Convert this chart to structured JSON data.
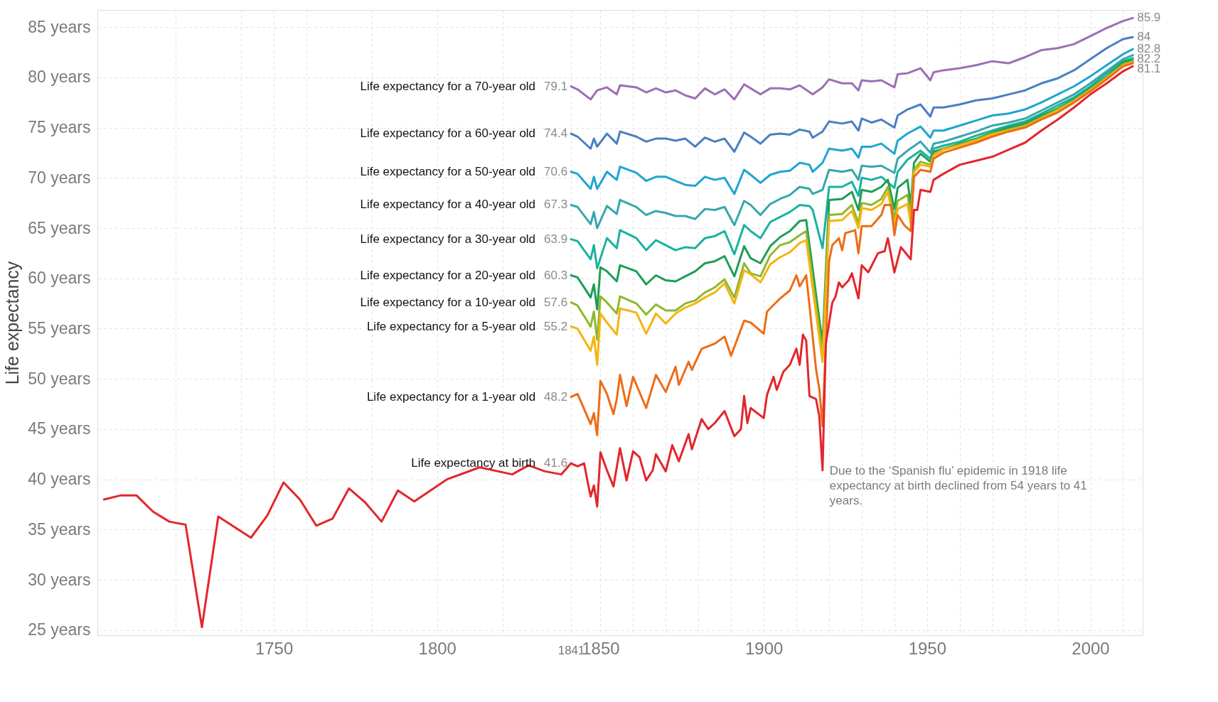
{
  "chart_data": {
    "type": "line",
    "ylabel": "Life expectancy",
    "xlim": [
      1696,
      2016
    ],
    "ylim": [
      24.5,
      86.7
    ],
    "xticks": [
      {
        "value": 1720,
        "label": null
      },
      {
        "value": 1740,
        "label": null
      },
      1750,
      {
        "value": 1760,
        "label": null
      },
      {
        "value": 1780,
        "label": null
      },
      1800,
      {
        "value": 1820,
        "label": null
      },
      1841,
      1850,
      {
        "value": 1860,
        "label": null
      },
      {
        "value": 1870,
        "label": null
      },
      {
        "value": 1880,
        "label": null
      },
      {
        "value": 1890,
        "label": null
      },
      1900,
      {
        "value": 1910,
        "label": null
      },
      {
        "value": 1920,
        "label": null
      },
      {
        "value": 1930,
        "label": null
      },
      {
        "value": 1940,
        "label": null
      },
      1950,
      {
        "value": 1960,
        "label": null
      },
      {
        "value": 1970,
        "label": null
      },
      {
        "value": 1980,
        "label": null
      },
      {
        "value": 1990,
        "label": null
      },
      2000,
      {
        "value": 2010,
        "label": null
      }
    ],
    "yticks": [
      {
        "value": 25,
        "label": "25 years"
      },
      {
        "value": 30,
        "label": "30 years"
      },
      {
        "value": 35,
        "label": "35 years"
      },
      {
        "value": 40,
        "label": "40 years"
      },
      {
        "value": 45,
        "label": "45 years"
      },
      {
        "value": 50,
        "label": "50 years"
      },
      {
        "value": 55,
        "label": "55 years"
      },
      {
        "value": 60,
        "label": "60 years"
      },
      {
        "value": 65,
        "label": "65 years"
      },
      {
        "value": 70,
        "label": "70 years"
      },
      {
        "value": 75,
        "label": "75 years"
      },
      {
        "value": 80,
        "label": "80 years"
      },
      {
        "value": 85,
        "label": "85 years"
      }
    ],
    "grid": true,
    "legend": false,
    "line_style": "solid",
    "annotations": [
      {
        "text": "Due to the ‘Spanish flu’ epidemic in 1918 life expectancy at birth declined from 54 years to 41 years.",
        "x": 1918,
        "y": 40.9
      }
    ],
    "series": [
      {
        "name": "Life expectancy for a 70-year old",
        "color": "#9c6fb6",
        "x": [
          1841,
          1843,
          1847,
          1849,
          1852,
          1855,
          1856,
          1861,
          1864,
          1867,
          1870,
          1873,
          1876,
          1879,
          1882,
          1885,
          1888,
          1891,
          1894,
          1896,
          1899,
          1902,
          1905,
          1908,
          1911,
          1915,
          1918,
          1920,
          1924,
          1927,
          1929,
          1930,
          1933,
          1936,
          1940,
          1941,
          1944,
          1948,
          1951,
          1952,
          1955,
          1960,
          1965,
          1970,
          1975,
          1980,
          1985,
          1990,
          1995,
          2000,
          2005,
          2010,
          2013
        ],
        "values": [
          79.1,
          78.8,
          77.8,
          78.7,
          79.0,
          78.3,
          79.2,
          79.0,
          78.5,
          78.9,
          78.5,
          78.7,
          78.2,
          77.9,
          78.9,
          78.3,
          78.8,
          77.8,
          79.3,
          78.9,
          78.3,
          78.9,
          78.9,
          78.8,
          79.2,
          78.3,
          79.0,
          79.8,
          79.4,
          79.4,
          78.7,
          79.7,
          79.6,
          79.7,
          79.0,
          80.3,
          80.4,
          80.9,
          79.7,
          80.5,
          80.7,
          80.9,
          81.2,
          81.6,
          81.4,
          82.0,
          82.7,
          82.9,
          83.3,
          84.1,
          84.9,
          85.6,
          85.9
        ],
        "value_labels": [
          "79.1",
          null,
          null,
          null,
          null,
          null,
          null,
          null,
          null,
          null,
          null,
          null,
          null,
          null,
          null,
          null,
          null,
          null,
          null,
          null,
          null,
          null,
          null,
          null,
          null,
          null,
          null,
          null,
          null,
          null,
          null,
          null,
          null,
          null,
          null,
          null,
          null,
          null,
          null,
          null,
          null,
          null,
          null,
          null,
          null,
          null,
          null,
          null,
          null,
          null,
          null,
          null,
          "85.9"
        ]
      },
      {
        "name": "Life expectancy for a 60-year old",
        "color": "#4a7fc1",
        "x": [
          1841,
          1843,
          1847,
          1848,
          1849,
          1852,
          1855,
          1856,
          1861,
          1864,
          1867,
          1870,
          1873,
          1876,
          1879,
          1882,
          1885,
          1888,
          1891,
          1894,
          1896,
          1899,
          1902,
          1905,
          1908,
          1911,
          1914,
          1915,
          1918,
          1920,
          1924,
          1927,
          1929,
          1930,
          1933,
          1936,
          1940,
          1941,
          1944,
          1948,
          1951,
          1952,
          1955,
          1960,
          1965,
          1970,
          1975,
          1980,
          1985,
          1990,
          1995,
          2000,
          2005,
          2010,
          2013
        ],
        "values": [
          74.4,
          74.1,
          72.9,
          73.9,
          73.1,
          74.4,
          73.4,
          74.6,
          74.1,
          73.6,
          73.9,
          73.9,
          73.7,
          73.9,
          73.1,
          74.0,
          73.6,
          73.9,
          72.6,
          74.5,
          74.1,
          73.4,
          74.3,
          74.4,
          74.3,
          74.8,
          74.6,
          74.0,
          74.6,
          75.6,
          75.4,
          75.6,
          74.7,
          75.9,
          75.5,
          75.8,
          75.0,
          76.2,
          76.8,
          77.3,
          76.1,
          77.0,
          77.0,
          77.3,
          77.7,
          77.9,
          78.3,
          78.7,
          79.4,
          79.9,
          80.7,
          81.8,
          82.9,
          83.8,
          84
        ],
        "value_labels": [
          "74.4",
          null,
          null,
          null,
          null,
          null,
          null,
          null,
          null,
          null,
          null,
          null,
          null,
          null,
          null,
          null,
          null,
          null,
          null,
          null,
          null,
          null,
          null,
          null,
          null,
          null,
          null,
          null,
          null,
          null,
          null,
          null,
          null,
          null,
          null,
          null,
          null,
          null,
          null,
          null,
          null,
          null,
          null,
          null,
          null,
          null,
          null,
          null,
          null,
          null,
          null,
          null,
          null,
          null,
          "84"
        ]
      },
      {
        "name": "Life expectancy for a 50-year old",
        "color": "#1ea5d2",
        "x": [
          1841,
          1843,
          1847,
          1848,
          1849,
          1852,
          1855,
          1856,
          1861,
          1864,
          1867,
          1870,
          1873,
          1876,
          1879,
          1882,
          1885,
          1888,
          1891,
          1894,
          1896,
          1899,
          1902,
          1905,
          1908,
          1911,
          1914,
          1915,
          1918,
          1920,
          1924,
          1927,
          1929,
          1930,
          1933,
          1936,
          1940,
          1941,
          1944,
          1948,
          1951,
          1952,
          1955,
          1960,
          1965,
          1970,
          1975,
          1980,
          1985,
          1990,
          1995,
          2000,
          2005,
          2010,
          2013
        ],
        "values": [
          70.6,
          70.4,
          68.9,
          70.1,
          68.9,
          70.6,
          69.8,
          71.1,
          70.5,
          69.7,
          70.1,
          70.1,
          69.7,
          69.3,
          69.2,
          70.1,
          69.8,
          70.0,
          68.4,
          70.8,
          70.3,
          69.5,
          70.3,
          70.6,
          70.7,
          71.5,
          71.3,
          70.6,
          71.5,
          72.9,
          72.7,
          72.9,
          72.0,
          73.1,
          73.1,
          73.4,
          72.4,
          73.7,
          74.4,
          75.1,
          74.0,
          74.7,
          74.7,
          75.2,
          75.7,
          76.2,
          76.4,
          76.8,
          77.5,
          78.3,
          79.1,
          80.1,
          81.2,
          82.3,
          82.8
        ],
        "value_labels": [
          "70.6",
          null,
          null,
          null,
          null,
          null,
          null,
          null,
          null,
          null,
          null,
          null,
          null,
          null,
          null,
          null,
          null,
          null,
          null,
          null,
          null,
          null,
          null,
          null,
          null,
          null,
          null,
          null,
          null,
          null,
          null,
          null,
          null,
          null,
          null,
          null,
          null,
          null,
          null,
          null,
          null,
          null,
          null,
          null,
          null,
          null,
          null,
          null,
          null,
          null,
          null,
          null,
          null,
          null,
          "82.8"
        ]
      },
      {
        "name": "Life expectancy for a 40-year old",
        "color": "#36a7ad",
        "x": [
          1841,
          1843,
          1847,
          1848,
          1849,
          1852,
          1855,
          1856,
          1861,
          1864,
          1867,
          1870,
          1873,
          1876,
          1879,
          1882,
          1885,
          1888,
          1891,
          1894,
          1896,
          1899,
          1902,
          1905,
          1908,
          1911,
          1914,
          1915,
          1918,
          1920,
          1924,
          1927,
          1929,
          1930,
          1933,
          1936,
          1940,
          1941,
          1944,
          1948,
          1951,
          1952,
          1955,
          1960,
          1965,
          1970,
          1975,
          1980,
          1985,
          1990,
          1995,
          2000,
          2005,
          2010,
          2013
        ],
        "values": [
          67.3,
          67.1,
          65.4,
          66.6,
          65.0,
          67.2,
          66.4,
          67.8,
          67.1,
          66.3,
          66.7,
          66.5,
          66.2,
          66.2,
          65.9,
          66.9,
          66.8,
          67.1,
          65.3,
          67.7,
          67.3,
          66.3,
          67.4,
          67.9,
          68.3,
          69.1,
          68.9,
          68.4,
          68.8,
          70.8,
          70.6,
          70.8,
          69.8,
          71.2,
          71.1,
          71.2,
          70.5,
          71.9,
          72.7,
          73.6,
          72.5,
          73.4,
          73.6,
          74.1,
          74.6,
          75.2,
          75.5,
          75.9,
          76.7,
          77.5,
          78.3,
          79.4,
          80.6,
          81.8,
          82.2
        ],
        "value_labels": [
          "67.3",
          null,
          null,
          null,
          null,
          null,
          null,
          null,
          null,
          null,
          null,
          null,
          null,
          null,
          null,
          null,
          null,
          null,
          null,
          null,
          null,
          null,
          null,
          null,
          null,
          null,
          null,
          null,
          null,
          null,
          null,
          null,
          null,
          null,
          null,
          null,
          null,
          null,
          null,
          null,
          null,
          null,
          null,
          null,
          null,
          null,
          null,
          null,
          null,
          null,
          null,
          null,
          null,
          null,
          "82.2"
        ]
      },
      {
        "name": "Life expectancy for a 30-year old",
        "color": "#19b29f",
        "x": [
          1841,
          1843,
          1847,
          1848,
          1849,
          1852,
          1855,
          1856,
          1861,
          1864,
          1867,
          1870,
          1873,
          1876,
          1879,
          1882,
          1885,
          1888,
          1891,
          1894,
          1896,
          1899,
          1902,
          1905,
          1908,
          1911,
          1914,
          1915,
          1918,
          1920,
          1924,
          1927,
          1929,
          1930,
          1933,
          1936,
          1940,
          1941,
          1944,
          1948,
          1951,
          1952,
          1955,
          1960,
          1965,
          1970,
          1975,
          1980,
          1985,
          1990,
          1995,
          2000,
          2005,
          2010,
          2013
        ],
        "values": [
          63.9,
          63.7,
          61.9,
          63.3,
          61.0,
          64.0,
          63.0,
          64.8,
          64.0,
          62.8,
          63.8,
          63.3,
          62.8,
          63.1,
          63.0,
          64.0,
          64.2,
          64.7,
          62.4,
          65.3,
          64.7,
          64.0,
          65.6,
          66.1,
          66.6,
          67.3,
          67.2,
          66.8,
          63.0,
          69.1,
          69.1,
          69.6,
          68.2,
          70.0,
          69.8,
          70.1,
          69.0,
          70.6,
          71.8,
          72.7,
          71.9,
          72.9,
          73.2,
          73.6,
          74.2,
          74.7,
          75.2,
          75.6,
          76.4,
          77.2,
          78.0,
          79.1,
          80.4,
          81.6,
          81.9
        ],
        "value_labels": [
          "63.9",
          null,
          null,
          null,
          null,
          null,
          null,
          null,
          null,
          null,
          null,
          null,
          null,
          null,
          null,
          null,
          null,
          null,
          null,
          null,
          null,
          null,
          null,
          null,
          null,
          null,
          null,
          null,
          null,
          null,
          null,
          null,
          null,
          null,
          null,
          null,
          null,
          null,
          null,
          null,
          null,
          null,
          null,
          null,
          null,
          null,
          null,
          null,
          null,
          null,
          null,
          null,
          null,
          null,
          null
        ]
      },
      {
        "name": "Life expectancy for a 20-year old",
        "color": "#1f9d55",
        "x": [
          1841,
          1843,
          1847,
          1848,
          1849,
          1850,
          1852,
          1855,
          1856,
          1861,
          1864,
          1867,
          1870,
          1873,
          1876,
          1879,
          1882,
          1885,
          1888,
          1891,
          1894,
          1896,
          1899,
          1902,
          1905,
          1908,
          1911,
          1913,
          1918,
          1920,
          1924,
          1927,
          1929,
          1930,
          1933,
          1936,
          1938,
          1940,
          1941,
          1944,
          1945,
          1946,
          1948,
          1951,
          1952,
          1955,
          1960,
          1965,
          1970,
          1975,
          1980,
          1985,
          1990,
          1995,
          2000,
          2005,
          2010,
          2013
        ],
        "values": [
          60.3,
          60.1,
          58.1,
          59.4,
          56.9,
          61.1,
          60.7,
          59.7,
          61.3,
          60.7,
          59.4,
          60.3,
          59.8,
          59.7,
          60.2,
          60.7,
          61.5,
          61.7,
          62.2,
          60.2,
          63.2,
          62.0,
          61.5,
          63.2,
          64.1,
          64.7,
          65.7,
          65.8,
          53.5,
          67.8,
          67.9,
          68.6,
          66.8,
          68.8,
          68.6,
          69.1,
          69.8,
          66.9,
          69.0,
          69.8,
          67.2,
          71.5,
          72.4,
          71.6,
          72.6,
          72.9,
          73.4,
          73.9,
          74.5,
          75.0,
          75.4,
          76.2,
          76.9,
          77.8,
          78.9,
          80.1,
          81.5,
          81.7
        ],
        "value_labels": [
          "60.3",
          null,
          null,
          null,
          null,
          null,
          null,
          null,
          null,
          null,
          null,
          null,
          null,
          null,
          null,
          null,
          null,
          null,
          null,
          null,
          null,
          null,
          null,
          null,
          null,
          null,
          null,
          null,
          null,
          null,
          null,
          null,
          null,
          null,
          null,
          null,
          null,
          null,
          null,
          null,
          null,
          null,
          null,
          null,
          null,
          null,
          null,
          null,
          null,
          null,
          null,
          null,
          null,
          null,
          null,
          null,
          null,
          null
        ]
      },
      {
        "name": "Life expectancy for a 10-year old",
        "color": "#8db82e",
        "x": [
          1841,
          1843,
          1847,
          1848,
          1849,
          1850,
          1852,
          1855,
          1856,
          1861,
          1864,
          1867,
          1870,
          1873,
          1876,
          1879,
          1882,
          1885,
          1888,
          1891,
          1894,
          1896,
          1899,
          1902,
          1905,
          1908,
          1911,
          1913,
          1918,
          1920,
          1924,
          1927,
          1929,
          1930,
          1933,
          1936,
          1938,
          1940,
          1941,
          1944,
          1945,
          1946,
          1948,
          1951,
          1952,
          1955,
          1960,
          1965,
          1970,
          1975,
          1980,
          1985,
          1990,
          1995,
          2000,
          2005,
          2010,
          2013
        ],
        "values": [
          57.6,
          57.3,
          55.2,
          56.7,
          53.9,
          58.2,
          57.6,
          56.5,
          58.2,
          57.5,
          56.4,
          57.4,
          56.8,
          56.8,
          57.5,
          57.8,
          58.6,
          59.1,
          59.9,
          58.1,
          61.5,
          60.5,
          60.2,
          62.3,
          63.3,
          63.6,
          64.3,
          64.7,
          52.5,
          66.3,
          66.4,
          67.3,
          65.5,
          67.5,
          67.3,
          67.9,
          69.1,
          66.0,
          67.7,
          68.3,
          66.3,
          70.8,
          71.6,
          71.3,
          72.3,
          72.9,
          73.3,
          73.8,
          74.4,
          74.8,
          75.2,
          76.0,
          76.8,
          77.7,
          78.8,
          80.0,
          81.3,
          81.6
        ],
        "value_labels": [
          "57.6",
          null,
          null,
          null,
          null,
          null,
          null,
          null,
          null,
          null,
          null,
          null,
          null,
          null,
          null,
          null,
          null,
          null,
          null,
          null,
          null,
          null,
          null,
          null,
          null,
          null,
          null,
          null,
          null,
          null,
          null,
          null,
          null,
          null,
          null,
          null,
          null,
          null,
          null,
          null,
          null,
          null,
          null,
          null,
          null,
          null,
          null,
          null,
          null,
          null,
          null,
          null,
          null,
          null,
          null,
          null,
          null,
          null
        ]
      },
      {
        "name": "Life expectancy for a 5-year old",
        "color": "#f5b40f",
        "x": [
          1841,
          1843,
          1847,
          1848,
          1849,
          1850,
          1852,
          1855,
          1856,
          1861,
          1864,
          1867,
          1870,
          1873,
          1876,
          1879,
          1882,
          1885,
          1888,
          1891,
          1894,
          1896,
          1899,
          1902,
          1905,
          1908,
          1911,
          1913,
          1918,
          1920,
          1924,
          1927,
          1929,
          1930,
          1933,
          1936,
          1938,
          1940,
          1941,
          1944,
          1945,
          1946,
          1948,
          1951,
          1952,
          1955,
          1960,
          1965,
          1970,
          1975,
          1980,
          1985,
          1990,
          1995,
          2000,
          2005,
          2010,
          2013
        ],
        "values": [
          55.2,
          55.0,
          52.8,
          54.2,
          51.4,
          56.5,
          55.6,
          54.4,
          57.0,
          56.6,
          54.5,
          56.5,
          55.5,
          56.5,
          57.1,
          57.5,
          58.1,
          58.6,
          59.5,
          57.5,
          60.8,
          60.4,
          59.6,
          61.4,
          62.1,
          62.6,
          63.5,
          63.8,
          51.7,
          65.7,
          65.8,
          66.7,
          65.0,
          67.0,
          66.8,
          67.4,
          68.6,
          65.3,
          66.9,
          67.4,
          65.5,
          70.6,
          71.3,
          71.1,
          72.2,
          72.8,
          73.2,
          73.7,
          74.3,
          74.7,
          75.1,
          75.9,
          76.7,
          77.6,
          78.7,
          79.9,
          81.2,
          81.5
        ],
        "value_labels": [
          "55.2",
          null,
          null,
          null,
          null,
          null,
          null,
          null,
          null,
          null,
          null,
          null,
          null,
          null,
          null,
          null,
          null,
          null,
          null,
          null,
          null,
          null,
          null,
          null,
          null,
          null,
          null,
          null,
          null,
          null,
          null,
          null,
          null,
          null,
          null,
          null,
          null,
          null,
          null,
          null,
          null,
          null,
          null,
          null,
          null,
          null,
          null,
          null,
          null,
          null,
          null,
          null,
          null,
          null,
          null,
          null,
          null,
          null
        ]
      },
      {
        "name": "Life expectancy for a 1-year old",
        "color": "#ec6c18",
        "x": [
          1841,
          1843,
          1847,
          1848,
          1849,
          1850,
          1852,
          1854,
          1855,
          1856,
          1858,
          1860,
          1864,
          1867,
          1870,
          1873,
          1874,
          1877,
          1878,
          1881,
          1885,
          1888,
          1890,
          1894,
          1896,
          1900,
          1901,
          1905,
          1908,
          1910,
          1911,
          1913,
          1914,
          1916,
          1917,
          1918,
          1920,
          1921,
          1923,
          1924,
          1925,
          1928,
          1929,
          1930,
          1933,
          1936,
          1937,
          1939,
          1940,
          1941,
          1943,
          1945,
          1946,
          1948,
          1951,
          1952,
          1955,
          1960,
          1965,
          1970,
          1975,
          1980,
          1985,
          1990,
          1995,
          2000,
          2005,
          2010,
          2013
        ],
        "values": [
          48.2,
          48.5,
          45.5,
          46.6,
          44.4,
          49.8,
          48.5,
          46.5,
          48.0,
          50.4,
          47.3,
          50.2,
          47.1,
          50.4,
          48.7,
          51.2,
          49.4,
          51.7,
          50.9,
          53.0,
          53.5,
          54.2,
          52.3,
          55.8,
          55.6,
          54.5,
          56.7,
          58.0,
          58.8,
          60.3,
          59.2,
          60.3,
          57.3,
          51.0,
          49.0,
          45.3,
          61.7,
          63.3,
          64.0,
          62.8,
          64.5,
          64.8,
          62.5,
          65.2,
          65.2,
          66.3,
          67.3,
          67.3,
          64.3,
          66.3,
          65.3,
          64.7,
          70.1,
          70.8,
          70.6,
          71.9,
          72.5,
          73.0,
          73.5,
          74.1,
          74.6,
          75.0,
          75.8,
          76.5,
          77.5,
          78.6,
          79.8,
          81.1,
          81.4
        ],
        "value_labels": [
          "48.2",
          null,
          null,
          null,
          null,
          null,
          null,
          null,
          null,
          null,
          null,
          null,
          null,
          null,
          null,
          null,
          null,
          null,
          null,
          null,
          null,
          null,
          null,
          null,
          null,
          null,
          null,
          null,
          null,
          null,
          null,
          null,
          null,
          null,
          null,
          null,
          null,
          null,
          null,
          null,
          null,
          null,
          null,
          null,
          null,
          null,
          null,
          null,
          null,
          null,
          null,
          null,
          null,
          null,
          null,
          null,
          null,
          null,
          null,
          null,
          null,
          null,
          null,
          null,
          null,
          null,
          null,
          null,
          null
        ]
      },
      {
        "name": "Life expectancy at birth",
        "color": "#e3262b",
        "x": [
          1698,
          1703,
          1708,
          1713,
          1718,
          1723,
          1728,
          1733,
          1743,
          1748,
          1753,
          1758,
          1763,
          1768,
          1773,
          1778,
          1783,
          1788,
          1793,
          1803,
          1808,
          1813,
          1823,
          1828,
          1833,
          1838,
          1841,
          1843,
          1845,
          1846,
          1847,
          1848,
          1849,
          1850,
          1852,
          1854,
          1856,
          1858,
          1860,
          1862,
          1864,
          1866,
          1867,
          1870,
          1872,
          1874,
          1877,
          1878,
          1881,
          1883,
          1885,
          1888,
          1891,
          1893,
          1894,
          1895,
          1896,
          1898,
          1900,
          1901,
          1903,
          1904,
          1906,
          1908,
          1910,
          1911,
          1912,
          1913,
          1914,
          1916,
          1917,
          1918,
          1919,
          1921,
          1922,
          1923,
          1924,
          1926,
          1927,
          1929,
          1930,
          1932,
          1935,
          1937,
          1938,
          1940,
          1942,
          1943,
          1945,
          1946,
          1947,
          1948,
          1951,
          1952,
          1955,
          1960,
          1965,
          1970,
          1975,
          1980,
          1985,
          1990,
          1995,
          2000,
          2005,
          2010,
          2013
        ],
        "values": [
          38.0,
          38.4,
          38.4,
          36.8,
          35.8,
          35.5,
          25.3,
          36.3,
          34.2,
          36.4,
          39.7,
          38.0,
          35.4,
          36.1,
          39.1,
          37.7,
          35.8,
          38.9,
          37.8,
          40.0,
          40.6,
          41.2,
          40.5,
          41.4,
          40.8,
          40.5,
          41.6,
          41.3,
          41.6,
          39.9,
          38.3,
          39.4,
          37.3,
          42.7,
          40.9,
          39.3,
          43.1,
          39.9,
          42.8,
          42.2,
          39.9,
          40.9,
          42.5,
          40.8,
          43.4,
          41.8,
          44.5,
          43.0,
          46.0,
          45.0,
          45.6,
          46.8,
          44.3,
          45.0,
          48.3,
          45.6,
          47.1,
          46.6,
          46.1,
          48.4,
          50.2,
          48.9,
          50.7,
          51.4,
          53.0,
          51.4,
          54.4,
          53.8,
          48.3,
          48.0,
          46.3,
          40.9,
          53.5,
          57.6,
          58.2,
          59.6,
          59.1,
          59.8,
          60.5,
          58.0,
          61.3,
          60.6,
          62.5,
          62.7,
          64.0,
          60.6,
          63.1,
          62.7,
          61.9,
          66.8,
          66.8,
          68.8,
          68.6,
          69.8,
          70.4,
          71.3,
          71.7,
          72.1,
          72.8,
          73.5,
          74.7,
          75.8,
          77.0,
          78.3,
          79.4,
          80.6,
          81.1
        ],
        "value_labels": [
          null,
          null,
          null,
          null,
          null,
          null,
          null,
          null,
          null,
          null,
          null,
          null,
          null,
          null,
          null,
          null,
          null,
          null,
          null,
          null,
          null,
          null,
          null,
          null,
          null,
          null,
          "41.6",
          null,
          null,
          null,
          null,
          null,
          null,
          null,
          null,
          null,
          null,
          null,
          null,
          null,
          null,
          null,
          null,
          null,
          null,
          null,
          null,
          null,
          null,
          null,
          null,
          null,
          null,
          null,
          null,
          null,
          null,
          null,
          null,
          null,
          null,
          null,
          null,
          null,
          null,
          null,
          null,
          null,
          null,
          null,
          null,
          null,
          null,
          null,
          null,
          null,
          null,
          null,
          null,
          null,
          null,
          null,
          null,
          null,
          null,
          null,
          null,
          null,
          null,
          null,
          null,
          null,
          null,
          null,
          null,
          null,
          null,
          null,
          null,
          null,
          null,
          null,
          null,
          null,
          null,
          null,
          "81.1"
        ]
      }
    ]
  }
}
